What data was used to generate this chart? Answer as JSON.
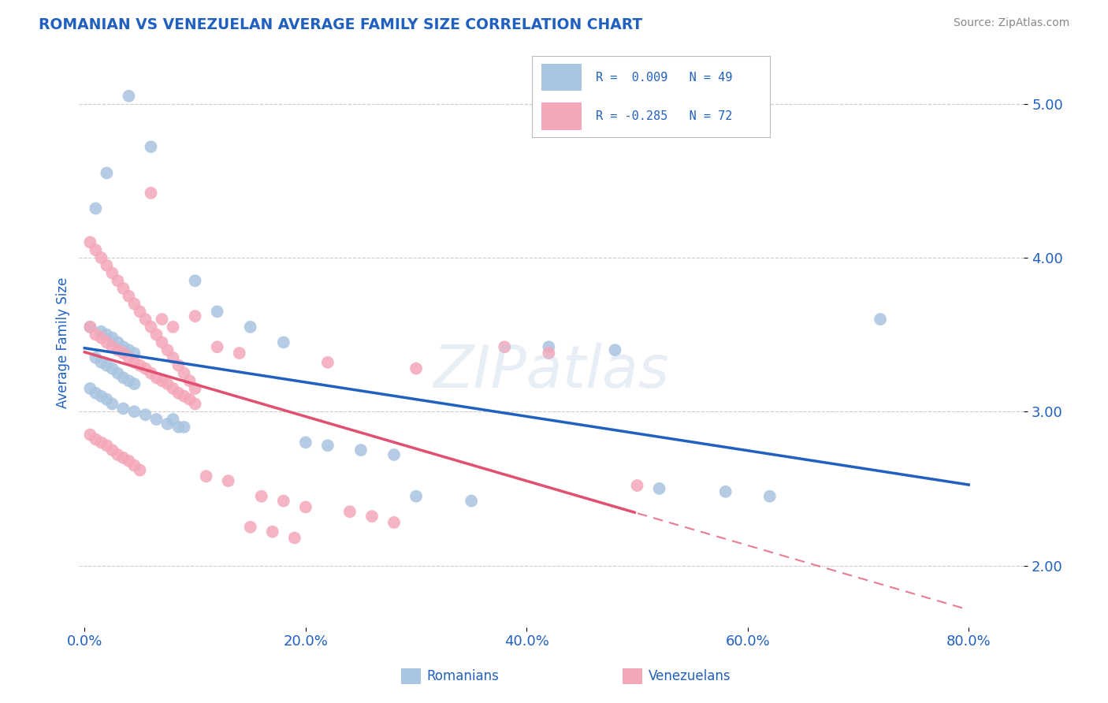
{
  "title": "ROMANIAN VS VENEZUELAN AVERAGE FAMILY SIZE CORRELATION CHART",
  "source": "Source: ZipAtlas.com",
  "ylabel": "Average Family Size",
  "ylim": [
    1.6,
    5.3
  ],
  "xlim": [
    -0.005,
    0.85
  ],
  "yticks": [
    2.0,
    3.0,
    4.0,
    5.0
  ],
  "xtick_vals": [
    0.0,
    0.2,
    0.4,
    0.6,
    0.8
  ],
  "xtick_labels": [
    "0.0%",
    "20.0%",
    "40.0%",
    "60.0%",
    "80.0%"
  ],
  "romanian_color": "#a8c4e0",
  "venezuelan_color": "#f4a7b9",
  "romanian_line_color": "#2060c0",
  "venezuelan_line_color": "#e05070",
  "R_romanian": 0.009,
  "N_romanian": 49,
  "R_venezuelan": -0.285,
  "N_venezuelan": 72,
  "watermark": "ZIPatlas",
  "title_color": "#2060c0",
  "axis_label_color": "#2060c0",
  "tick_color": "#2060c0",
  "grid_color": "#cccccc",
  "background_color": "#ffffff",
  "romanian_x": [
    0.04,
    0.06,
    0.02,
    0.01,
    0.005,
    0.015,
    0.02,
    0.025,
    0.03,
    0.035,
    0.04,
    0.045,
    0.01,
    0.015,
    0.02,
    0.025,
    0.03,
    0.035,
    0.04,
    0.045,
    0.005,
    0.01,
    0.015,
    0.02,
    0.025,
    0.035,
    0.045,
    0.055,
    0.065,
    0.075,
    0.085,
    0.1,
    0.12,
    0.15,
    0.18,
    0.42,
    0.48,
    0.52,
    0.58,
    0.62,
    0.72,
    0.3,
    0.35,
    0.08,
    0.09,
    0.2,
    0.22,
    0.25,
    0.28
  ],
  "romanian_y": [
    5.05,
    4.72,
    4.55,
    4.32,
    3.55,
    3.52,
    3.5,
    3.48,
    3.45,
    3.42,
    3.4,
    3.38,
    3.35,
    3.32,
    3.3,
    3.28,
    3.25,
    3.22,
    3.2,
    3.18,
    3.15,
    3.12,
    3.1,
    3.08,
    3.05,
    3.02,
    3.0,
    2.98,
    2.95,
    2.92,
    2.9,
    3.85,
    3.65,
    3.55,
    3.45,
    3.42,
    3.4,
    2.5,
    2.48,
    2.45,
    3.6,
    2.45,
    2.42,
    2.95,
    2.9,
    2.8,
    2.78,
    2.75,
    2.72
  ],
  "venezuelan_x": [
    0.005,
    0.01,
    0.015,
    0.02,
    0.025,
    0.03,
    0.035,
    0.04,
    0.045,
    0.05,
    0.055,
    0.06,
    0.065,
    0.07,
    0.075,
    0.08,
    0.085,
    0.09,
    0.095,
    0.1,
    0.005,
    0.01,
    0.015,
    0.02,
    0.025,
    0.03,
    0.035,
    0.04,
    0.045,
    0.05,
    0.055,
    0.06,
    0.065,
    0.07,
    0.075,
    0.08,
    0.085,
    0.09,
    0.095,
    0.1,
    0.005,
    0.01,
    0.015,
    0.02,
    0.025,
    0.03,
    0.035,
    0.04,
    0.045,
    0.05,
    0.12,
    0.14,
    0.16,
    0.18,
    0.2,
    0.22,
    0.24,
    0.26,
    0.28,
    0.3,
    0.15,
    0.17,
    0.19,
    0.38,
    0.42,
    0.1,
    0.11,
    0.13,
    0.08,
    0.07,
    0.06,
    0.5
  ],
  "venezuelan_y": [
    3.55,
    3.5,
    3.48,
    3.45,
    3.42,
    3.4,
    3.38,
    3.35,
    3.32,
    3.3,
    3.28,
    3.25,
    3.22,
    3.2,
    3.18,
    3.15,
    3.12,
    3.1,
    3.08,
    3.05,
    4.1,
    4.05,
    4.0,
    3.95,
    3.9,
    3.85,
    3.8,
    3.75,
    3.7,
    3.65,
    3.6,
    3.55,
    3.5,
    3.45,
    3.4,
    3.35,
    3.3,
    3.25,
    3.2,
    3.15,
    2.85,
    2.82,
    2.8,
    2.78,
    2.75,
    2.72,
    2.7,
    2.68,
    2.65,
    2.62,
    3.42,
    3.38,
    2.45,
    2.42,
    2.38,
    3.32,
    2.35,
    2.32,
    2.28,
    3.28,
    2.25,
    2.22,
    2.18,
    3.42,
    3.38,
    3.62,
    2.58,
    2.55,
    3.55,
    3.6,
    4.42,
    2.52
  ]
}
